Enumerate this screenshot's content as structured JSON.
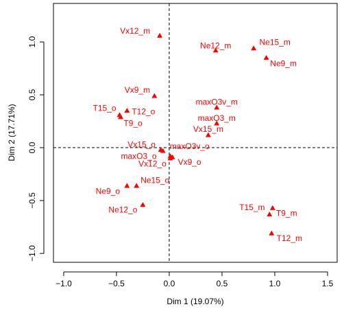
{
  "chart_data": {
    "type": "scatter",
    "xlabel": "Dim 1 (19.07%)",
    "ylabel": "Dim 2 (17.71%)",
    "labels": [
      "Vx12_m",
      "Ne12_m",
      "Ne15_m",
      "Ne9_m",
      "Vx9_m",
      "maxO3v_m",
      "maxO3_m",
      "Vx15_m",
      "T15_o",
      "T12_o",
      "T9_o",
      "Vx15_o",
      "maxO3v_o",
      "maxO3_o",
      "Vx12_o",
      "Vx9_o",
      "Ne15_o",
      "Ne9_o",
      "Ne12_o",
      "T15_m",
      "T9_m",
      "T12_m"
    ],
    "x": [
      -0.09,
      0.44,
      0.8,
      0.92,
      -0.14,
      0.45,
      0.45,
      0.37,
      -0.47,
      -0.4,
      -0.46,
      -0.08,
      -0.06,
      0.01,
      0.01,
      0.03,
      -0.31,
      -0.4,
      -0.25,
      0.98,
      0.95,
      0.97
    ],
    "values": [
      1.06,
      0.92,
      0.94,
      0.85,
      0.49,
      0.38,
      0.23,
      0.12,
      0.31,
      0.35,
      0.29,
      -0.02,
      -0.03,
      -0.08,
      -0.1,
      -0.09,
      -0.36,
      -0.36,
      -0.54,
      -0.57,
      -0.63,
      -0.81
    ],
    "color": "#ff0000",
    "xlim": [
      -1.097,
      1.591
    ],
    "ylim": [
      -1.084,
      1.364
    ],
    "xticks": [
      {
        "value": -1.0,
        "label": "−1.0"
      },
      {
        "value": -0.5,
        "label": "−0.5"
      },
      {
        "value": 0,
        "label": "0.0"
      },
      {
        "value": 0.5,
        "label": "0.5"
      },
      {
        "value": 1.0,
        "label": "1.0"
      },
      {
        "value": 1.5,
        "label": "1.5"
      }
    ],
    "yticks": [
      {
        "value": -1.0,
        "label": "−1.0"
      },
      {
        "value": -0.5,
        "label": "−0.5"
      },
      {
        "value": 0,
        "label": "0.0"
      },
      {
        "value": 0.5,
        "label": "0.5"
      },
      {
        "value": 1.0,
        "label": "1.0"
      }
    ]
  }
}
